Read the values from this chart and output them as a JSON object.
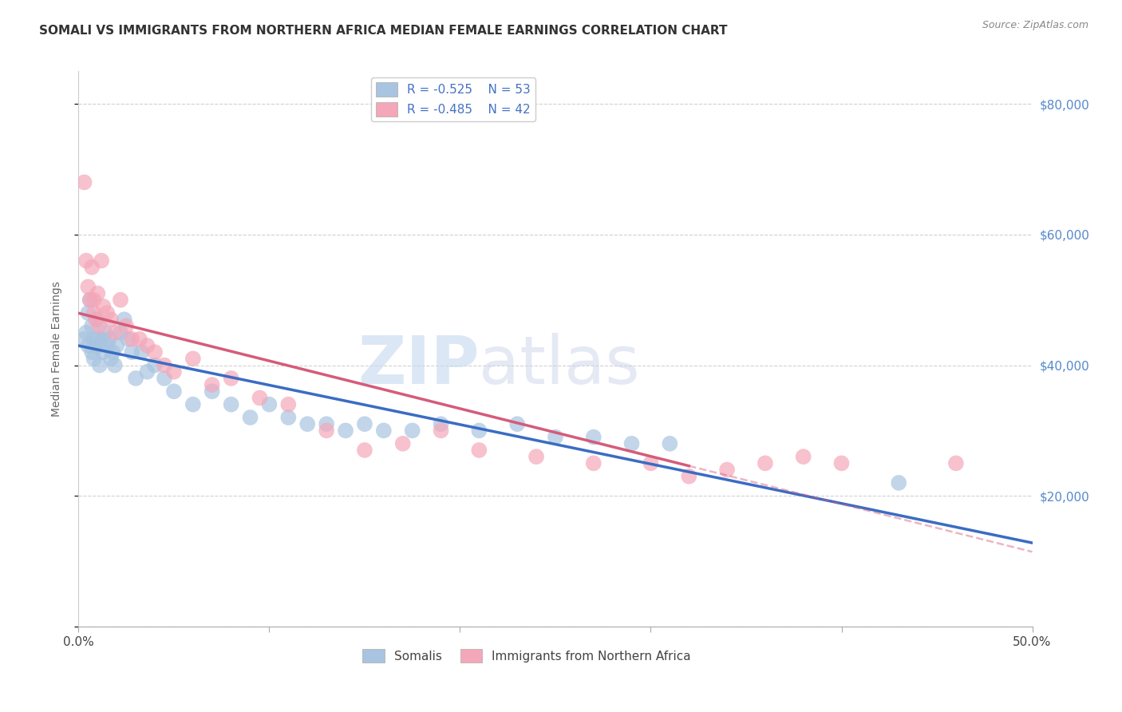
{
  "title": "SOMALI VS IMMIGRANTS FROM NORTHERN AFRICA MEDIAN FEMALE EARNINGS CORRELATION CHART",
  "source": "Source: ZipAtlas.com",
  "ylabel": "Median Female Earnings",
  "xlim": [
    0.0,
    0.5
  ],
  "ylim": [
    0,
    85000
  ],
  "yticks": [
    0,
    20000,
    40000,
    60000,
    80000
  ],
  "ytick_labels": [
    "",
    "$20,000",
    "$40,000",
    "$60,000",
    "$80,000"
  ],
  "somali_color": "#a8c4e0",
  "northern_africa_color": "#f4a7b9",
  "somali_line_color": "#3a6cc4",
  "northern_africa_line_color": "#d45c7a",
  "legend_label_somali": "Somalis",
  "legend_label_nafr": "Immigrants from Northern Africa",
  "somali_x": [
    0.003,
    0.004,
    0.005,
    0.005,
    0.006,
    0.007,
    0.007,
    0.008,
    0.008,
    0.009,
    0.01,
    0.01,
    0.011,
    0.011,
    0.012,
    0.013,
    0.014,
    0.015,
    0.016,
    0.017,
    0.018,
    0.019,
    0.02,
    0.022,
    0.024,
    0.026,
    0.028,
    0.03,
    0.033,
    0.036,
    0.04,
    0.045,
    0.05,
    0.06,
    0.07,
    0.08,
    0.09,
    0.1,
    0.11,
    0.12,
    0.13,
    0.14,
    0.15,
    0.16,
    0.175,
    0.19,
    0.21,
    0.23,
    0.25,
    0.27,
    0.29,
    0.31,
    0.43
  ],
  "somali_y": [
    44000,
    45000,
    43000,
    48000,
    50000,
    46000,
    42000,
    44000,
    41000,
    43000,
    47000,
    44000,
    43000,
    40000,
    44000,
    42000,
    45000,
    43000,
    44000,
    41000,
    42000,
    40000,
    43000,
    45000,
    47000,
    44000,
    42000,
    38000,
    42000,
    39000,
    40000,
    38000,
    36000,
    34000,
    36000,
    34000,
    32000,
    34000,
    32000,
    31000,
    31000,
    30000,
    31000,
    30000,
    30000,
    31000,
    30000,
    31000,
    29000,
    29000,
    28000,
    28000,
    22000
  ],
  "nafr_x": [
    0.003,
    0.004,
    0.005,
    0.006,
    0.007,
    0.008,
    0.008,
    0.009,
    0.01,
    0.011,
    0.012,
    0.013,
    0.015,
    0.017,
    0.019,
    0.022,
    0.025,
    0.028,
    0.032,
    0.036,
    0.04,
    0.045,
    0.05,
    0.06,
    0.07,
    0.08,
    0.095,
    0.11,
    0.13,
    0.15,
    0.17,
    0.19,
    0.21,
    0.24,
    0.27,
    0.3,
    0.32,
    0.34,
    0.36,
    0.38,
    0.4,
    0.46
  ],
  "nafr_y": [
    68000,
    56000,
    52000,
    50000,
    55000,
    48000,
    50000,
    47000,
    51000,
    46000,
    56000,
    49000,
    48000,
    47000,
    45000,
    50000,
    46000,
    44000,
    44000,
    43000,
    42000,
    40000,
    39000,
    41000,
    37000,
    38000,
    35000,
    34000,
    30000,
    27000,
    28000,
    30000,
    27000,
    26000,
    25000,
    25000,
    23000,
    24000,
    25000,
    26000,
    25000,
    25000
  ],
  "background_color": "#ffffff",
  "grid_color": "#cccccc",
  "watermark_ZIP": "ZIP",
  "watermark_atlas": "atlas",
  "watermark_color_ZIP": "#c5d8ef",
  "watermark_color_atlas": "#c5d0e8"
}
